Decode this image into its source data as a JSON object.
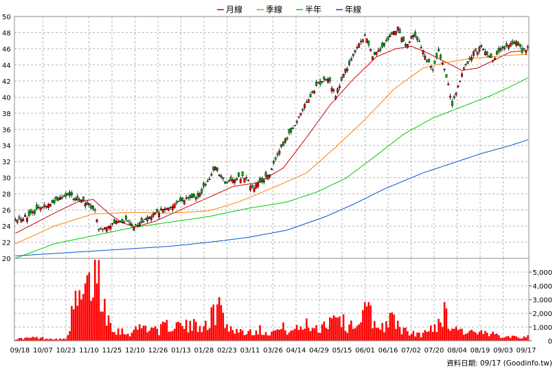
{
  "legend": {
    "items": [
      {
        "label": "月線",
        "color": "#cc0000"
      },
      {
        "label": "季線",
        "color": "#ff7f00"
      },
      {
        "label": "半年",
        "color": "#00cc00"
      },
      {
        "label": "年線",
        "color": "#0055cc"
      }
    ]
  },
  "footer": "資料日期: 09/17  (Goodinfo.tw)",
  "chart_data": [
    {
      "type": "candlestick",
      "ylim": [
        20,
        50
      ],
      "y_ticks": [
        "20",
        "22",
        "24",
        "26",
        "28",
        "30",
        "32",
        "34",
        "36",
        "38",
        "40",
        "42",
        "44",
        "46",
        "48",
        "50"
      ],
      "x_tick_labels": [
        "09/18",
        "10/07",
        "10/23",
        "11/10",
        "11/25",
        "12/10",
        "12/26",
        "01/13",
        "01/28",
        "02/23",
        "03/11",
        "03/26",
        "04/14",
        "04/29",
        "05/15",
        "06/01",
        "06/16",
        "07/02",
        "07/20",
        "08/04",
        "08/19",
        "09/03",
        "09/17"
      ],
      "grid": true,
      "price_anchors": [
        [
          0,
          24.6
        ],
        [
          9,
          25.6
        ],
        [
          18,
          26.8
        ],
        [
          27,
          27.9
        ],
        [
          33,
          27.3
        ],
        [
          38,
          26.7
        ],
        [
          41,
          25.8
        ],
        [
          43,
          23.6
        ],
        [
          52,
          24.4
        ],
        [
          57,
          24.8
        ],
        [
          60,
          23.9
        ],
        [
          66,
          24.5
        ],
        [
          74,
          25.8
        ],
        [
          83,
          26.8
        ],
        [
          90,
          27.5
        ],
        [
          94,
          27.4
        ],
        [
          98,
          29.2
        ],
        [
          103,
          31.1
        ],
        [
          108,
          29.4
        ],
        [
          113,
          29.8
        ],
        [
          118,
          30.2
        ],
        [
          122,
          28.8
        ],
        [
          127,
          29.5
        ],
        [
          131,
          30.6
        ],
        [
          135,
          32.6
        ],
        [
          139,
          34.6
        ],
        [
          144,
          36.6
        ],
        [
          150,
          39.4
        ],
        [
          156,
          41.6
        ],
        [
          161,
          42.4
        ],
        [
          165,
          40.2
        ],
        [
          169,
          42.8
        ],
        [
          174,
          45.2
        ],
        [
          177,
          46.8
        ],
        [
          180,
          47.6
        ],
        [
          184,
          45.2
        ],
        [
          188,
          45.8
        ],
        [
          193,
          47.6
        ],
        [
          197,
          48.6
        ],
        [
          201,
          46.4
        ],
        [
          205,
          47.8
        ],
        [
          208,
          46.8
        ],
        [
          211,
          45.0
        ],
        [
          215,
          43.4
        ],
        [
          218,
          45.8
        ],
        [
          222,
          42.6
        ],
        [
          225,
          39.0
        ],
        [
          228,
          41.5
        ],
        [
          232,
          44.0
        ],
        [
          236,
          45.5
        ],
        [
          240,
          46.2
        ],
        [
          243,
          45.3
        ],
        [
          246,
          44.8
        ],
        [
          250,
          45.8
        ],
        [
          254,
          46.4
        ],
        [
          258,
          47.0
        ],
        [
          261,
          45.6
        ],
        [
          264,
          46.0
        ]
      ],
      "series": [
        {
          "name": "月線",
          "anchors": [
            [
              0,
              23.1
            ],
            [
              20,
              25.6
            ],
            [
              32,
              27.0
            ],
            [
              40,
              27.3
            ],
            [
              48,
              25.6
            ],
            [
              55,
              24.4
            ],
            [
              62,
              23.9
            ],
            [
              72,
              24.6
            ],
            [
              85,
              26.0
            ],
            [
              100,
              27.6
            ],
            [
              112,
              28.9
            ],
            [
              125,
              29.4
            ],
            [
              138,
              31.2
            ],
            [
              150,
              35.0
            ],
            [
              162,
              39.0
            ],
            [
              174,
              42.2
            ],
            [
              186,
              45.0
            ],
            [
              196,
              46.0
            ],
            [
              204,
              46.3
            ],
            [
              212,
              45.5
            ],
            [
              222,
              44.3
            ],
            [
              230,
              43.3
            ],
            [
              238,
              43.6
            ],
            [
              246,
              44.5
            ],
            [
              255,
              45.6
            ],
            [
              264,
              45.8
            ]
          ]
        },
        {
          "name": "季線",
          "anchors": [
            [
              0,
              21.8
            ],
            [
              20,
              24.0
            ],
            [
              40,
              25.5
            ],
            [
              60,
              25.7
            ],
            [
              80,
              25.6
            ],
            [
              100,
              25.9
            ],
            [
              115,
              27.0
            ],
            [
              125,
              28.0
            ],
            [
              135,
              29.0
            ],
            [
              150,
              30.6
            ],
            [
              165,
              33.8
            ],
            [
              180,
              37.2
            ],
            [
              195,
              41.0
            ],
            [
              210,
              43.6
            ],
            [
              220,
              44.2
            ],
            [
              232,
              44.7
            ],
            [
              245,
              45.0
            ],
            [
              255,
              45.2
            ],
            [
              264,
              45.3
            ]
          ]
        },
        {
          "name": "半年",
          "anchors": [
            [
              0,
              20.0
            ],
            [
              20,
              21.8
            ],
            [
              40,
              22.8
            ],
            [
              60,
              23.8
            ],
            [
              80,
              24.5
            ],
            [
              100,
              25.2
            ],
            [
              120,
              26.2
            ],
            [
              140,
              27.0
            ],
            [
              155,
              28.2
            ],
            [
              170,
              29.9
            ],
            [
              185,
              32.6
            ],
            [
              200,
              35.4
            ],
            [
              215,
              37.4
            ],
            [
              230,
              38.8
            ],
            [
              245,
              40.2
            ],
            [
              255,
              41.3
            ],
            [
              264,
              42.4
            ]
          ]
        },
        {
          "name": "年線",
          "anchors": [
            [
              0,
              20.3
            ],
            [
              20,
              20.6
            ],
            [
              40,
              20.9
            ],
            [
              60,
              21.2
            ],
            [
              80,
              21.5
            ],
            [
              100,
              22.0
            ],
            [
              120,
              22.6
            ],
            [
              140,
              23.5
            ],
            [
              160,
              25.2
            ],
            [
              175,
              26.8
            ],
            [
              190,
              28.6
            ],
            [
              200,
              29.6
            ],
            [
              210,
              30.6
            ],
            [
              225,
              31.8
            ],
            [
              240,
              33.0
            ],
            [
              255,
              34.0
            ],
            [
              264,
              34.7
            ]
          ]
        }
      ]
    },
    {
      "type": "bar",
      "ylim": [
        0,
        6000
      ],
      "y_ticks": [
        "0",
        "1,000",
        "2,000",
        "3,000",
        "4,000",
        "5,000"
      ],
      "volume_anchors": [
        [
          0,
          150
        ],
        [
          10,
          250
        ],
        [
          18,
          180
        ],
        [
          26,
          120
        ],
        [
          30,
          2600
        ],
        [
          34,
          3300
        ],
        [
          38,
          4100
        ],
        [
          42,
          5900
        ],
        [
          45,
          3200
        ],
        [
          48,
          1800
        ],
        [
          52,
          900
        ],
        [
          58,
          600
        ],
        [
          66,
          1200
        ],
        [
          74,
          900
        ],
        [
          80,
          1300
        ],
        [
          90,
          1100
        ],
        [
          100,
          1600
        ],
        [
          105,
          2900
        ],
        [
          110,
          1000
        ],
        [
          118,
          700
        ],
        [
          125,
          900
        ],
        [
          132,
          700
        ],
        [
          138,
          1000
        ],
        [
          144,
          800
        ],
        [
          150,
          1300
        ],
        [
          156,
          1000
        ],
        [
          162,
          1700
        ],
        [
          166,
          2500
        ],
        [
          170,
          1100
        ],
        [
          176,
          1500
        ],
        [
          182,
          2500
        ],
        [
          186,
          1000
        ],
        [
          194,
          1700
        ],
        [
          202,
          600
        ],
        [
          210,
          500
        ],
        [
          216,
          1200
        ],
        [
          221,
          2200
        ],
        [
          224,
          1300
        ],
        [
          230,
          800
        ],
        [
          238,
          600
        ],
        [
          246,
          500
        ],
        [
          254,
          400
        ],
        [
          264,
          300
        ]
      ]
    }
  ]
}
